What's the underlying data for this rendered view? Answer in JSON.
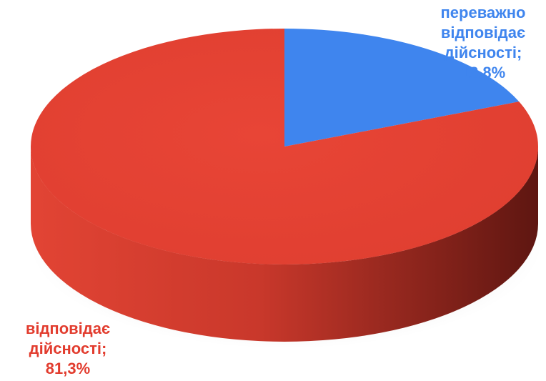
{
  "chart_data": {
    "type": "pie",
    "style": "3d",
    "slices": [
      {
        "label_lines": [
          "відповідає",
          "дійсності;",
          "81,3%"
        ],
        "value": 81.3,
        "color": "#E84536",
        "side_color": "#A72A1F"
      },
      {
        "label_lines": [
          "переважно",
          "відповідає",
          "дійсності;",
          "18,8%"
        ],
        "value": 18.8,
        "color": "#3F85EE",
        "side_color": "#2A5DB0"
      }
    ],
    "legend": "none",
    "grid": false
  }
}
